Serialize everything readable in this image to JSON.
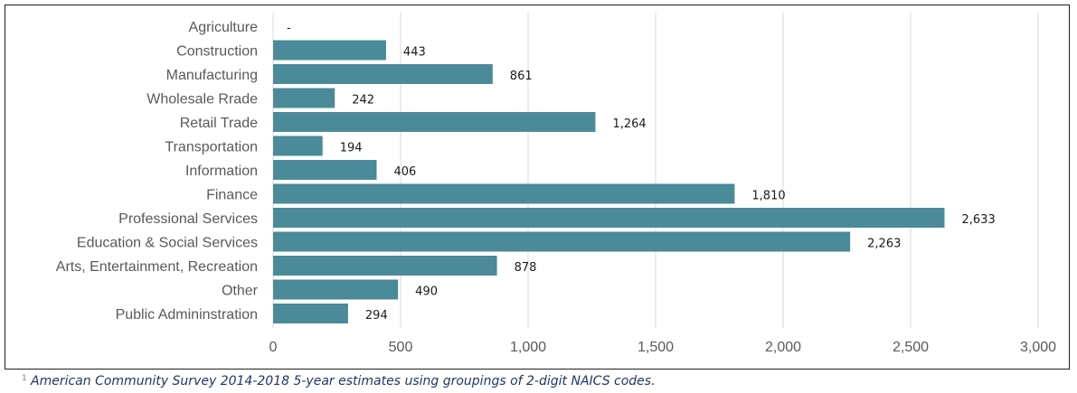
{
  "chart_data": {
    "type": "bar",
    "orientation": "horizontal",
    "categories": [
      "Agriculture",
      "Construction",
      "Manufacturing",
      "Wholesale Rrade",
      "Retail Trade",
      "Transportation",
      "Information",
      "Finance",
      "Professional Services",
      "Education & Social Services",
      "Arts, Entertainment, Recreation",
      "Other",
      "Public Admininstration"
    ],
    "values": [
      0,
      443,
      861,
      242,
      1264,
      194,
      406,
      1810,
      2633,
      2263,
      878,
      490,
      294
    ],
    "data_labels": [
      "-",
      "443",
      "861",
      "242",
      "1,264",
      "194",
      "406",
      "1,810",
      "2,633",
      "2,263",
      "878",
      "490",
      "294"
    ],
    "xlim": [
      0,
      3000
    ],
    "xticks": [
      0,
      500,
      1000,
      1500,
      2000,
      2500,
      3000
    ],
    "xtick_labels": [
      "0",
      "500",
      "1,000",
      "1,500",
      "2,000",
      "2,500",
      "3,000"
    ],
    "bar_color": "#4a8a99",
    "grid": "vertical",
    "legend": "none"
  },
  "footnote": {
    "mark": "1",
    "text": "American Community Survey 2014-2018 5-year estimates using groupings of 2-digit NAICS codes."
  }
}
